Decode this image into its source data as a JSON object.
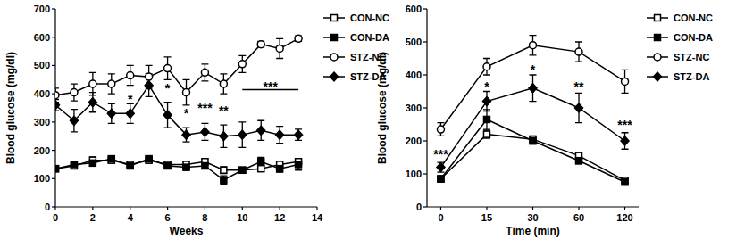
{
  "chart_data": [
    {
      "type": "line",
      "x_label": "Weeks",
      "y_label": "Blood glucose (mg/dl)",
      "x": [
        0,
        1,
        2,
        3,
        4,
        5,
        6,
        7,
        8,
        9,
        10,
        11,
        12,
        13
      ],
      "xlim": [
        0,
        14
      ],
      "xticks": [
        0,
        2,
        4,
        6,
        8,
        10,
        12,
        14
      ],
      "ylim": [
        0,
        700
      ],
      "yticks": [
        0,
        100,
        200,
        300,
        400,
        500,
        600,
        700
      ],
      "legend": "right",
      "series": [
        {
          "name": "CON-NC",
          "color": "#000000",
          "marker": "square-open",
          "values": [
            135,
            145,
            165,
            165,
            150,
            165,
            150,
            150,
            160,
            130,
            130,
            135,
            150,
            160
          ],
          "errors": [
            10,
            10,
            12,
            10,
            10,
            10,
            8,
            10,
            10,
            12,
            10,
            10,
            10,
            10
          ]
        },
        {
          "name": "CON-DA",
          "color": "#000000",
          "marker": "square",
          "values": [
            135,
            150,
            155,
            170,
            145,
            170,
            145,
            140,
            145,
            95,
            130,
            160,
            135,
            150
          ],
          "errors": [
            10,
            10,
            10,
            10,
            10,
            10,
            8,
            10,
            10,
            15,
            10,
            15,
            12,
            20
          ]
        },
        {
          "name": "STZ-NC",
          "color": "#000000",
          "marker": "circle-open",
          "values": [
            395,
            405,
            435,
            435,
            465,
            460,
            490,
            405,
            475,
            435,
            505,
            575,
            560,
            595
          ],
          "errors": [
            25,
            30,
            40,
            35,
            35,
            40,
            40,
            45,
            30,
            35,
            30,
            10,
            35,
            10
          ]
        },
        {
          "name": "STZ-DA",
          "color": "#000000",
          "marker": "diamond",
          "values": [
            360,
            305,
            370,
            330,
            330,
            430,
            325,
            255,
            265,
            250,
            255,
            270,
            255,
            255
          ],
          "errors": [
            20,
            40,
            35,
            35,
            35,
            40,
            45,
            25,
            30,
            40,
            45,
            35,
            30,
            20
          ]
        }
      ],
      "annotations": [
        {
          "text": "*",
          "x": 4,
          "y": 380
        },
        {
          "text": "*",
          "x": 6,
          "y": 420
        },
        {
          "text": "*",
          "x": 7,
          "y": 330
        },
        {
          "text": "***",
          "x": 8,
          "y": 350
        },
        {
          "text": "**",
          "x": 9,
          "y": 340
        },
        {
          "text": "***",
          "x": 11.5,
          "y": 425
        }
      ],
      "brackets": [
        {
          "x1": 10,
          "x2": 13,
          "y": 415
        }
      ]
    },
    {
      "type": "line",
      "x_label": "Time (min)",
      "y_label": "Blood glucose (mg/dl)",
      "categories": [
        "0",
        "15",
        "30",
        "60",
        "120"
      ],
      "ylim": [
        0,
        600
      ],
      "yticks": [
        0,
        100,
        200,
        300,
        400,
        500,
        600
      ],
      "legend": "right",
      "series": [
        {
          "name": "CON-NC",
          "color": "#000000",
          "marker": "square-open",
          "values": [
            85,
            220,
            205,
            155,
            80
          ],
          "errors": [
            8,
            12,
            10,
            10,
            8
          ]
        },
        {
          "name": "CON-DA",
          "color": "#000000",
          "marker": "square",
          "values": [
            85,
            265,
            200,
            140,
            75
          ],
          "errors": [
            8,
            30,
            10,
            10,
            8
          ]
        },
        {
          "name": "STZ-NC",
          "color": "#000000",
          "marker": "circle-open",
          "values": [
            235,
            425,
            490,
            470,
            380
          ],
          "errors": [
            20,
            25,
            30,
            30,
            35
          ]
        },
        {
          "name": "STZ-DA",
          "color": "#000000",
          "marker": "diamond",
          "values": [
            120,
            320,
            360,
            300,
            200
          ],
          "errors": [
            15,
            30,
            40,
            45,
            25
          ]
        }
      ],
      "annotations": [
        {
          "text": "***",
          "x": "0",
          "y": 160
        },
        {
          "text": "*",
          "x": "15",
          "y": 365
        },
        {
          "text": "*",
          "x": "30",
          "y": 415
        },
        {
          "text": "**",
          "x": "60",
          "y": 365
        },
        {
          "text": "***",
          "x": "120",
          "y": 250
        }
      ]
    }
  ]
}
